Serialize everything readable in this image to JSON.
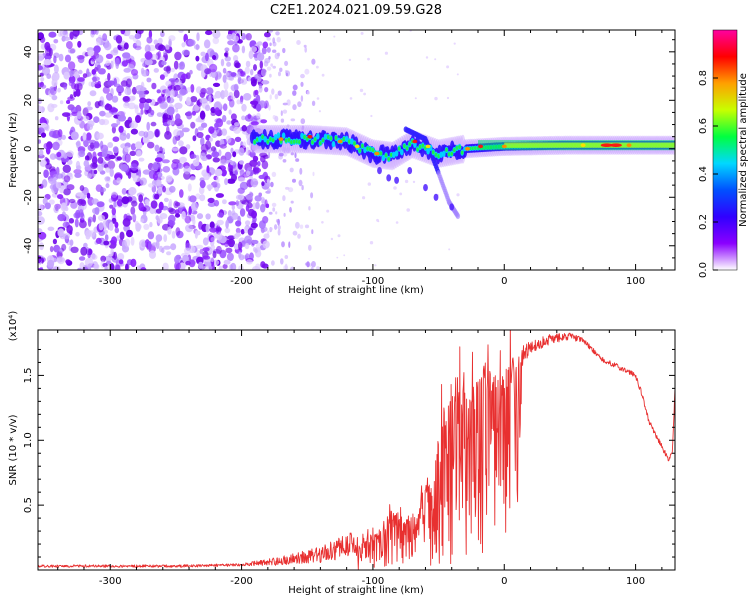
{
  "title": "C2E1.2024.021.09.59.G28",
  "chart_data": [
    {
      "type": "heatmap",
      "name": "spectrogram",
      "xlabel": "Height of straight line (km)",
      "ylabel": "Frequency (Hz)",
      "xlim": [
        -355,
        130
      ],
      "ylim": [
        -50,
        49
      ],
      "x_ticks": [
        -300,
        -200,
        -100,
        0,
        100
      ],
      "y_ticks": [
        -40,
        -20,
        0,
        20,
        40
      ],
      "colorbar": {
        "label": "Normalized spectral amplitude",
        "range": [
          0,
          1
        ],
        "ticks": [
          "0.0",
          "0.2",
          "0.4",
          "0.6",
          "0.8"
        ],
        "colormap": [
          "#ffffff",
          "#8a00ff",
          "#3000ff",
          "#0050ff",
          "#00d8ff",
          "#00ff40",
          "#c8ff00",
          "#ffa000",
          "#ff0000",
          "#ff00a0"
        ]
      },
      "features": {
        "noise_region_x": [
          -355,
          -180
        ],
        "sparse_region_x": [
          -180,
          -145
        ],
        "signal_trace": [
          {
            "x": -190,
            "y": 4
          },
          {
            "x": -150,
            "y": 4
          },
          {
            "x": -120,
            "y": 3
          },
          {
            "x": -100,
            "y": -2
          },
          {
            "x": -85,
            "y": -3
          },
          {
            "x": -70,
            "y": 2
          },
          {
            "x": -50,
            "y": -2
          },
          {
            "x": -30,
            "y": 0
          },
          {
            "x": 0,
            "y": 1
          },
          {
            "x": 50,
            "y": 1.5
          },
          {
            "x": 100,
            "y": 1.5
          },
          {
            "x": 130,
            "y": 1.5
          }
        ],
        "faint_branch": [
          {
            "x": -75,
            "y": 8
          },
          {
            "x": -60,
            "y": 4
          },
          {
            "x": -50,
            "y": -10
          },
          {
            "x": -42,
            "y": -22
          },
          {
            "x": -35,
            "y": -28
          }
        ]
      }
    },
    {
      "type": "line",
      "name": "snr",
      "xlabel": "Height of straight line (km)",
      "ylabel": "SNR (10 * v/v)",
      "multiplier_label": "(x10⁴)",
      "xlim": [
        -355,
        130
      ],
      "ylim": [
        0,
        1.85
      ],
      "x_ticks": [
        -300,
        -200,
        -100,
        0,
        100
      ],
      "y_ticks": [
        0.5,
        1.0,
        1.5
      ],
      "y_tick_labels": [
        "0.5",
        "1.0",
        "1.5"
      ],
      "color": "#e83030",
      "envelope": [
        {
          "x": -355,
          "y": 0.03
        },
        {
          "x": -250,
          "y": 0.03
        },
        {
          "x": -200,
          "y": 0.04
        },
        {
          "x": -170,
          "y": 0.07
        },
        {
          "x": -140,
          "y": 0.12
        },
        {
          "x": -110,
          "y": 0.22
        },
        {
          "x": -95,
          "y": 0.3
        },
        {
          "x": -85,
          "y": 0.45
        },
        {
          "x": -70,
          "y": 0.4
        },
        {
          "x": -55,
          "y": 0.75
        },
        {
          "x": -45,
          "y": 1.25
        },
        {
          "x": -35,
          "y": 1.5
        },
        {
          "x": -25,
          "y": 1.35
        },
        {
          "x": -15,
          "y": 1.55
        },
        {
          "x": -5,
          "y": 1.45
        },
        {
          "x": 5,
          "y": 1.6
        },
        {
          "x": 20,
          "y": 1.72
        },
        {
          "x": 35,
          "y": 1.78
        },
        {
          "x": 50,
          "y": 1.8
        },
        {
          "x": 60,
          "y": 1.77
        },
        {
          "x": 75,
          "y": 1.62
        },
        {
          "x": 90,
          "y": 1.55
        },
        {
          "x": 100,
          "y": 1.5
        },
        {
          "x": 105,
          "y": 1.35
        },
        {
          "x": 110,
          "y": 1.15
        },
        {
          "x": 120,
          "y": 0.95
        },
        {
          "x": 125,
          "y": 0.85
        },
        {
          "x": 128,
          "y": 0.9
        },
        {
          "x": 130,
          "y": 1.4
        }
      ],
      "variability": [
        {
          "x": -355,
          "y": 0.01
        },
        {
          "x": -200,
          "y": 0.01
        },
        {
          "x": -150,
          "y": 0.05
        },
        {
          "x": -100,
          "y": 0.12
        },
        {
          "x": -60,
          "y": 0.3
        },
        {
          "x": -35,
          "y": 0.5
        },
        {
          "x": -15,
          "y": 0.4
        },
        {
          "x": 0,
          "y": 0.2
        },
        {
          "x": 20,
          "y": 0.05
        },
        {
          "x": 60,
          "y": 0.02
        },
        {
          "x": 130,
          "y": 0.02
        }
      ]
    }
  ]
}
